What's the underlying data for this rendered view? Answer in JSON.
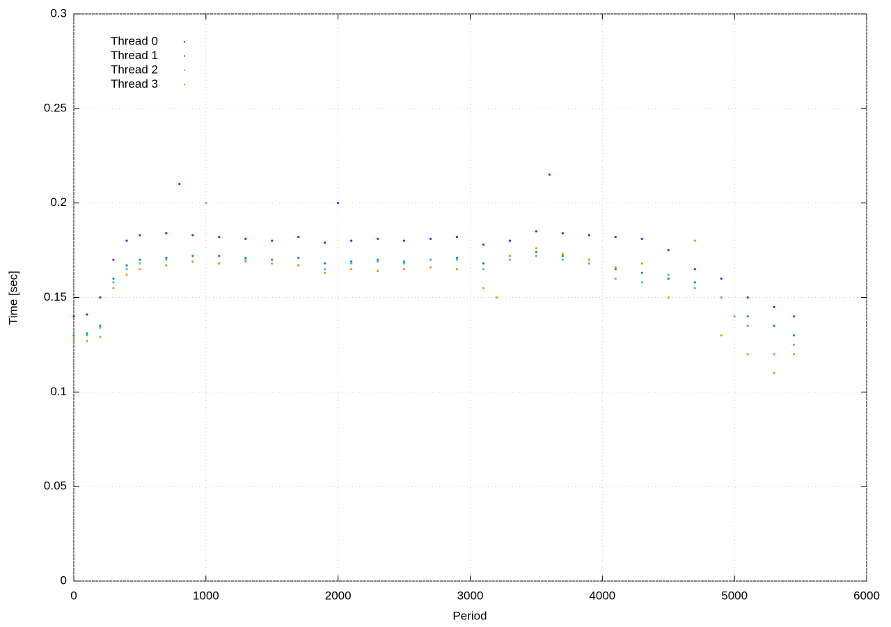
{
  "chart_data": {
    "type": "scatter",
    "x_label": "Period",
    "y_label": "Time [sec]",
    "xlim": [
      0,
      6000
    ],
    "xticks": [
      0,
      1000,
      2000,
      3000,
      4000,
      5000,
      6000
    ],
    "ylim": [
      0,
      0.3
    ],
    "yticks": [
      0,
      0.05,
      0.1,
      0.15,
      0.2,
      0.25,
      0.3
    ],
    "grid": true,
    "legend": "top-left",
    "series": [
      {
        "name": "Thread 0",
        "color": "#9400d3",
        "x": [
          0,
          100,
          200,
          300,
          400,
          500,
          700,
          800,
          900,
          1100,
          1300,
          1500,
          1700,
          1900,
          2000,
          2100,
          2300,
          2500,
          2700,
          2900,
          3100,
          3300,
          3500,
          3600,
          3700,
          3900,
          4100,
          4300,
          4500,
          4700,
          4900,
          5100,
          5300,
          5450
        ],
        "values": [
          0.14,
          0.141,
          0.15,
          0.17,
          0.18,
          0.183,
          0.184,
          0.21,
          0.183,
          0.182,
          0.181,
          0.18,
          0.182,
          0.179,
          0.2,
          0.18,
          0.181,
          0.18,
          0.181,
          0.182,
          0.178,
          0.18,
          0.185,
          0.215,
          0.184,
          0.183,
          0.182,
          0.181,
          0.175,
          0.165,
          0.16,
          0.15,
          0.145,
          0.14
        ]
      },
      {
        "name": "Thread 1",
        "color": "#009e73",
        "x": [
          0,
          100,
          200,
          300,
          400,
          500,
          700,
          900,
          1100,
          1300,
          1500,
          1700,
          1900,
          2100,
          2300,
          2500,
          2700,
          2900,
          3100,
          3300,
          3500,
          3700,
          3900,
          4100,
          4300,
          4500,
          4700,
          4900,
          5100,
          5300,
          5450
        ],
        "values": [
          0.13,
          0.131,
          0.135,
          0.16,
          0.167,
          0.17,
          0.171,
          0.172,
          0.172,
          0.171,
          0.17,
          0.171,
          0.168,
          0.169,
          0.17,
          0.169,
          0.17,
          0.171,
          0.168,
          0.172,
          0.174,
          0.172,
          0.17,
          0.165,
          0.163,
          0.16,
          0.158,
          0.15,
          0.14,
          0.135,
          0.13
        ]
      },
      {
        "name": "Thread 2",
        "color": "#56b4e9",
        "x": [
          0,
          100,
          200,
          300,
          400,
          500,
          700,
          900,
          1000,
          1100,
          1300,
          1500,
          1700,
          1900,
          2100,
          2300,
          2500,
          2700,
          2900,
          3100,
          3300,
          3500,
          3700,
          3900,
          4100,
          4300,
          4500,
          4700,
          4900,
          5000,
          5100,
          5300,
          5450
        ],
        "values": [
          0.129,
          0.13,
          0.134,
          0.158,
          0.165,
          0.168,
          0.17,
          0.169,
          0.2,
          0.168,
          0.17,
          0.168,
          0.167,
          0.165,
          0.168,
          0.169,
          0.168,
          0.17,
          0.17,
          0.165,
          0.17,
          0.172,
          0.17,
          0.168,
          0.16,
          0.158,
          0.162,
          0.155,
          0.15,
          0.14,
          0.135,
          0.12,
          0.125
        ]
      },
      {
        "name": "Thread 3",
        "color": "#e69f00",
        "x": [
          0,
          100,
          200,
          300,
          400,
          500,
          700,
          900,
          1100,
          1300,
          1500,
          1700,
          1900,
          2100,
          2300,
          2500,
          2700,
          2900,
          3100,
          3200,
          3300,
          3500,
          3700,
          3900,
          4100,
          4300,
          4500,
          4700,
          4900,
          5100,
          5300,
          5450
        ],
        "values": [
          0.127,
          0.127,
          0.129,
          0.155,
          0.162,
          0.165,
          0.167,
          0.169,
          0.168,
          0.169,
          0.168,
          0.167,
          0.163,
          0.165,
          0.164,
          0.165,
          0.166,
          0.165,
          0.155,
          0.15,
          0.172,
          0.176,
          0.173,
          0.17,
          0.166,
          0.168,
          0.15,
          0.18,
          0.13,
          0.12,
          0.11,
          0.12
        ]
      }
    ]
  }
}
